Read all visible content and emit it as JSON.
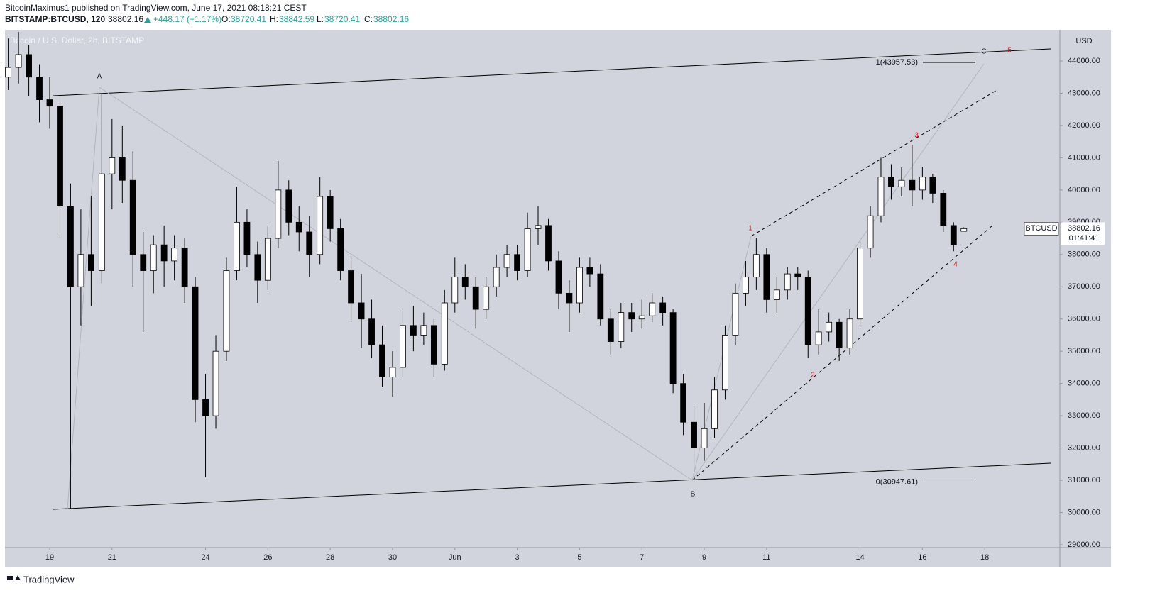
{
  "header": {
    "author_line": "BitcoinMaximus1 published on TradingView.com, June 17, 2021 08:18:21 CEST",
    "symbol": "BITSTAMP:BTCUSD, 120",
    "change": "+448.17 (+1.17%)",
    "o_label": "O:",
    "h_label": "H:",
    "l_label": "L:",
    "c_label": "C:"
  },
  "footer": {
    "brand": "TradingView"
  },
  "chart_data": {
    "type": "candlestick",
    "watermark": "Bitcoin / U.S. Dollar, 2h, BITSTAMP",
    "currency": "USD",
    "price_tag": "BTCUSD",
    "countdown": "01:41:41",
    "up_color": "#ffffff",
    "down_color": "#000000",
    "wick_color": "#000000",
    "x": [
      -1.33,
      -1,
      -0.67,
      -0.33,
      0,
      0.33,
      0.67,
      1,
      1.33,
      1.67,
      2,
      2.33,
      2.67,
      3,
      3.33,
      3.67,
      4,
      4.33,
      4.67,
      5,
      5.33,
      5.67,
      6,
      6.33,
      6.67,
      7,
      7.33,
      7.67,
      8,
      8.33,
      8.67,
      9,
      9.33,
      9.67,
      10,
      10.33,
      10.67,
      11,
      11.33,
      11.67,
      12,
      12.33,
      12.67,
      13,
      13.33,
      13.67,
      14,
      14.33,
      14.67,
      15,
      15.33,
      15.67,
      16,
      16.33,
      16.67,
      17,
      17.33,
      17.67,
      18,
      18.33,
      18.67,
      19,
      19.33,
      19.67,
      20,
      20.33,
      20.67,
      21,
      21.33,
      21.67,
      22,
      22.33,
      22.67,
      23,
      23.33,
      23.67,
      24,
      24.33,
      24.67,
      25,
      25.33,
      25.67,
      26,
      26.33,
      26.67,
      27,
      27.33,
      27.67,
      28,
      28.33,
      28.67,
      29,
      29.33
    ],
    "open": [
      43500,
      43800,
      44200,
      43500,
      42800,
      42600,
      39500,
      37000,
      38000,
      37500,
      40500,
      41000,
      40300,
      38000,
      37500,
      38300,
      37800,
      38200,
      37000,
      33500,
      33000,
      35000,
      37500,
      39000,
      38000,
      37200,
      38500,
      40000,
      39000,
      38700,
      38000,
      39800,
      38800,
      37500,
      36500,
      36000,
      35200,
      34200,
      34500,
      35800,
      35500,
      35800,
      34600,
      36500,
      37300,
      37000,
      36300,
      37000,
      37600,
      38000,
      37500,
      38800,
      38900,
      37800,
      36800,
      36500,
      37600,
      37400,
      36000,
      35300,
      36200,
      36000,
      36100,
      36500,
      36200,
      34000,
      32800,
      32000,
      32600,
      33800,
      35500,
      36800,
      37300,
      38000,
      36600,
      36900,
      37400,
      37300,
      35200,
      35600,
      35900,
      35100,
      36000,
      38200,
      39200,
      40400,
      40100,
      40300,
      40000,
      40400,
      39900,
      38900,
      38720.41
    ],
    "high": [
      44700,
      44900,
      44500,
      43900,
      43500,
      42900,
      40200,
      39400,
      39800,
      43000,
      42200,
      42000,
      41200,
      38700,
      38600,
      38900,
      38600,
      38500,
      37300,
      34300,
      35500,
      37900,
      40100,
      39400,
      38400,
      38900,
      40900,
      40300,
      39500,
      39200,
      40400,
      40000,
      39100,
      37900,
      37400,
      36600,
      35800,
      35000,
      36300,
      36400,
      36200,
      36000,
      36900,
      37900,
      37700,
      37300,
      37300,
      38000,
      38300,
      38300,
      39300,
      39500,
      39100,
      38100,
      37200,
      37900,
      37900,
      37700,
      36300,
      36500,
      36500,
      36600,
      36800,
      36700,
      36300,
      34300,
      33300,
      33400,
      34200,
      35800,
      37100,
      37800,
      38500,
      38200,
      37300,
      37600,
      37600,
      37500,
      36300,
      36200,
      36000,
      36300,
      38400,
      39500,
      41000,
      40800,
      40700,
      41400,
      40700,
      40500,
      40000,
      39000,
      38842.59
    ],
    "low": [
      43100,
      43300,
      42900,
      42100,
      41900,
      38600,
      30100,
      35800,
      36400,
      37100,
      39400,
      39600,
      37000,
      35600,
      36800,
      37000,
      37200,
      36500,
      32800,
      31100,
      32600,
      34700,
      37200,
      37600,
      36500,
      36900,
      38200,
      38600,
      38100,
      37300,
      37700,
      38400,
      37200,
      35900,
      35100,
      34800,
      33900,
      33600,
      34200,
      35000,
      35200,
      34200,
      34400,
      36200,
      36600,
      35700,
      36000,
      36700,
      37300,
      37200,
      37300,
      38300,
      37500,
      36300,
      35600,
      36200,
      37000,
      35800,
      34900,
      35100,
      35600,
      35700,
      35900,
      35800,
      33700,
      32400,
      30950,
      31600,
      32300,
      33500,
      35200,
      36400,
      36900,
      36200,
      36200,
      36600,
      36900,
      34800,
      34900,
      35300,
      34700,
      34900,
      35800,
      37900,
      39000,
      39700,
      39800,
      39500,
      39700,
      39600,
      38700,
      38100,
      38720.41
    ],
    "close": [
      43800,
      44200,
      43500,
      42800,
      42600,
      39500,
      37000,
      38000,
      37500,
      40500,
      41000,
      40300,
      38000,
      37500,
      38300,
      37800,
      38200,
      37000,
      33500,
      33000,
      35000,
      37500,
      39000,
      38000,
      37200,
      38500,
      40000,
      39000,
      38700,
      38000,
      39800,
      38800,
      37500,
      36500,
      36000,
      35200,
      34200,
      34500,
      35800,
      35500,
      35800,
      34600,
      36500,
      37300,
      37000,
      36300,
      37000,
      37600,
      38000,
      37500,
      38800,
      38900,
      37800,
      36800,
      36500,
      37600,
      37400,
      36000,
      35300,
      36200,
      36000,
      36100,
      36500,
      36200,
      34000,
      32800,
      32000,
      32600,
      33800,
      35500,
      36800,
      37300,
      38000,
      36600,
      36900,
      37400,
      37300,
      35200,
      35600,
      35900,
      35100,
      36000,
      38200,
      39200,
      40400,
      40100,
      40300,
      40000,
      40400,
      39900,
      38900,
      38300,
      38802.16
    ],
    "xlim": [
      -1.435,
      32.41
    ],
    "xticks": [
      {
        "value": 0,
        "label": "19"
      },
      {
        "value": 2,
        "label": "21"
      },
      {
        "value": 5,
        "label": "24"
      },
      {
        "value": 7,
        "label": "26"
      },
      {
        "value": 9,
        "label": "28"
      },
      {
        "value": 11,
        "label": "30"
      },
      {
        "value": 13,
        "label": "Jun"
      },
      {
        "value": 15,
        "label": "3"
      },
      {
        "value": 17,
        "label": "5"
      },
      {
        "value": 19,
        "label": "7"
      },
      {
        "value": 21,
        "label": "9"
      },
      {
        "value": 23,
        "label": "11"
      },
      {
        "value": 26,
        "label": "14"
      },
      {
        "value": 28,
        "label": "16"
      },
      {
        "value": 30,
        "label": "18"
      }
    ],
    "ylim": [
      28912,
      44968
    ],
    "yticks": [
      {
        "value": 29000,
        "label": "29000.00"
      },
      {
        "value": 30000,
        "label": "30000.00"
      },
      {
        "value": 31000,
        "label": "31000.00"
      },
      {
        "value": 32000,
        "label": "32000.00"
      },
      {
        "value": 33000,
        "label": "33000.00"
      },
      {
        "value": 34000,
        "label": "34000.00"
      },
      {
        "value": 35000,
        "label": "35000.00"
      },
      {
        "value": 36000,
        "label": "36000.00"
      },
      {
        "value": 37000,
        "label": "37000.00"
      },
      {
        "value": 38000,
        "label": "38000.00"
      },
      {
        "value": 39000,
        "label": "39000.00"
      },
      {
        "value": 40000,
        "label": "40000.00"
      },
      {
        "value": 41000,
        "label": "41000.00"
      },
      {
        "value": 42000,
        "label": "42000.00"
      },
      {
        "value": 43000,
        "label": "43000.00"
      },
      {
        "value": 44000,
        "label": "44000.00"
      }
    ],
    "grid": false,
    "fib_levels": [
      {
        "value": 43957.53,
        "label": "1(43957.53)"
      },
      {
        "value": 30947.61,
        "label": "0(30947.61)"
      }
    ],
    "wave_labels": [
      {
        "text": "A",
        "color": "#131722"
      },
      {
        "text": "B",
        "color": "#131722"
      },
      {
        "text": "C",
        "color": "#131722"
      },
      {
        "text": "1",
        "color": "#e3151a"
      },
      {
        "text": "2",
        "color": "#e3151a"
      },
      {
        "text": "3",
        "color": "#e3151a"
      },
      {
        "text": "4",
        "color": "#e3151a"
      },
      {
        "text": "5",
        "color": "#e3151a"
      }
    ]
  }
}
